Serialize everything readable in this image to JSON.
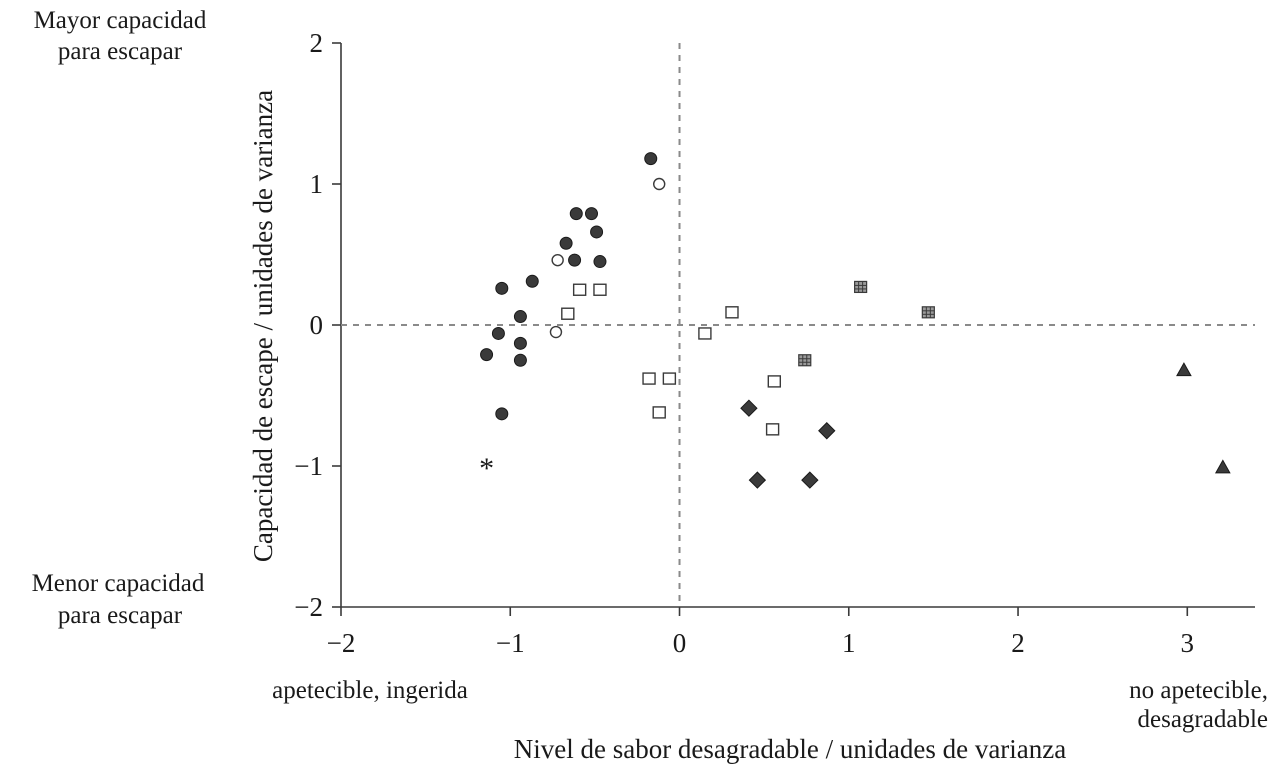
{
  "chart_data": {
    "type": "scatter",
    "xlabel": "Nivel de sabor desagradable / unidades de varianza",
    "ylabel": "Capacidad de escape / unidades de varianza",
    "xlim": [
      -2,
      3.4
    ],
    "ylim": [
      -2,
      2
    ],
    "x_ticks": [
      "−2",
      "−1",
      "0",
      "1",
      "2",
      "3"
    ],
    "y_ticks": [
      "−2",
      "0",
      "1",
      "2"
    ],
    "y_ticks_values": [
      -2,
      0,
      1,
      2
    ],
    "y_extra_tick": {
      "value": -1,
      "label": "−1"
    },
    "reference_lines": {
      "x": 0,
      "y": 0,
      "style": "dashed"
    },
    "annotations": {
      "x_left": "apetecible, ingerida",
      "x_right_line1": "no apetecible,",
      "x_right_line2": "desagradable",
      "y_top_line1": "Mayor capacidad",
      "y_top_line2": "para escapar",
      "y_bottom_line1": "Menor capacidad",
      "y_bottom_line2": "para escapar"
    },
    "series": [
      {
        "marker": "filled-circle",
        "color": "#3a3a3a",
        "points": [
          [
            -0.17,
            1.18
          ],
          [
            -0.61,
            0.79
          ],
          [
            -0.52,
            0.79
          ],
          [
            -0.49,
            0.66
          ],
          [
            -0.67,
            0.58
          ],
          [
            -0.62,
            0.46
          ],
          [
            -0.47,
            0.45
          ],
          [
            -1.05,
            0.26
          ],
          [
            -0.87,
            0.31
          ],
          [
            -0.94,
            0.06
          ],
          [
            -1.07,
            -0.06
          ],
          [
            -0.94,
            -0.13
          ],
          [
            -1.14,
            -0.21
          ],
          [
            -0.94,
            -0.25
          ],
          [
            -1.05,
            -0.63
          ]
        ]
      },
      {
        "marker": "open-circle",
        "color": "#3a3a3a",
        "points": [
          [
            -0.12,
            1.0
          ],
          [
            -0.72,
            0.46
          ],
          [
            -0.73,
            -0.05
          ]
        ]
      },
      {
        "marker": "open-square",
        "color": "#3a3a3a",
        "points": [
          [
            -0.59,
            0.25
          ],
          [
            -0.47,
            0.25
          ],
          [
            -0.66,
            0.08
          ],
          [
            0.31,
            0.09
          ],
          [
            0.15,
            -0.06
          ],
          [
            -0.18,
            -0.38
          ],
          [
            -0.06,
            -0.38
          ],
          [
            0.56,
            -0.4
          ],
          [
            -0.12,
            -0.62
          ],
          [
            0.55,
            -0.74
          ]
        ]
      },
      {
        "marker": "grid-square",
        "color": "#9a9a9a",
        "points": [
          [
            1.07,
            0.27
          ],
          [
            1.47,
            0.09
          ],
          [
            0.74,
            -0.25
          ]
        ]
      },
      {
        "marker": "filled-diamond",
        "color": "#3a3a3a",
        "points": [
          [
            0.41,
            -0.59
          ],
          [
            0.87,
            -0.75
          ],
          [
            0.46,
            -1.1
          ],
          [
            0.77,
            -1.1
          ]
        ]
      },
      {
        "marker": "filled-triangle",
        "color": "#3a3a3a",
        "points": [
          [
            2.98,
            -0.32
          ],
          [
            3.21,
            -1.01
          ]
        ]
      },
      {
        "marker": "asterisk",
        "color": "#3a3a3a",
        "points": [
          [
            -1.14,
            -1.0
          ]
        ]
      }
    ]
  }
}
